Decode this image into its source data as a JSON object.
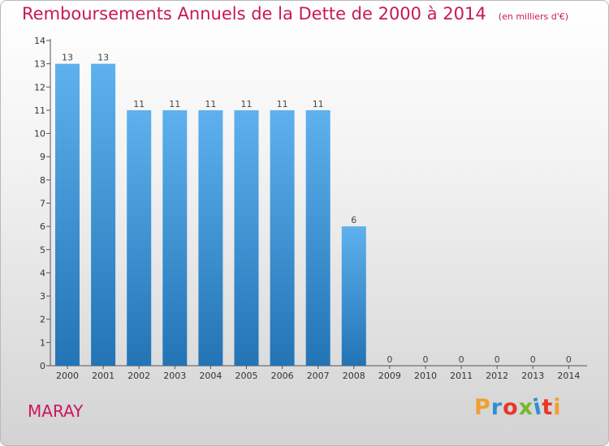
{
  "title": "Remboursements Annuels de la Dette de 2000 à 2014",
  "unit": "(en milliers d'€)",
  "commune": "MARAY",
  "brand": "Proxiti",
  "colors": {
    "title": "#c8185a",
    "bar_top": "#5eb1ee",
    "bar_bottom": "#2274b5",
    "brand_letters": [
      "#f0a030",
      "#2e8fd6",
      "#e8372b",
      "#76b82a",
      "#2e8fd6",
      "#e8372b",
      "#f0a030"
    ]
  },
  "chart_data": {
    "type": "bar",
    "categories": [
      "2000",
      "2001",
      "2002",
      "2003",
      "2004",
      "2005",
      "2006",
      "2007",
      "2008",
      "2009",
      "2010",
      "2011",
      "2012",
      "2013",
      "2014"
    ],
    "values": [
      13,
      13,
      11,
      11,
      11,
      11,
      11,
      11,
      6,
      0,
      0,
      0,
      0,
      0,
      0
    ],
    "data_labels": [
      "13",
      "13",
      "11",
      "11",
      "11",
      "11",
      "11",
      "11",
      "6",
      "0",
      "0",
      "0",
      "0",
      "0",
      "0"
    ],
    "ylim": [
      0,
      14
    ],
    "yticks": [
      0,
      1,
      2,
      3,
      4,
      5,
      6,
      7,
      8,
      9,
      10,
      11,
      12,
      13,
      14
    ],
    "xlabel": "",
    "ylabel": "",
    "grid": false,
    "legend": "none"
  }
}
